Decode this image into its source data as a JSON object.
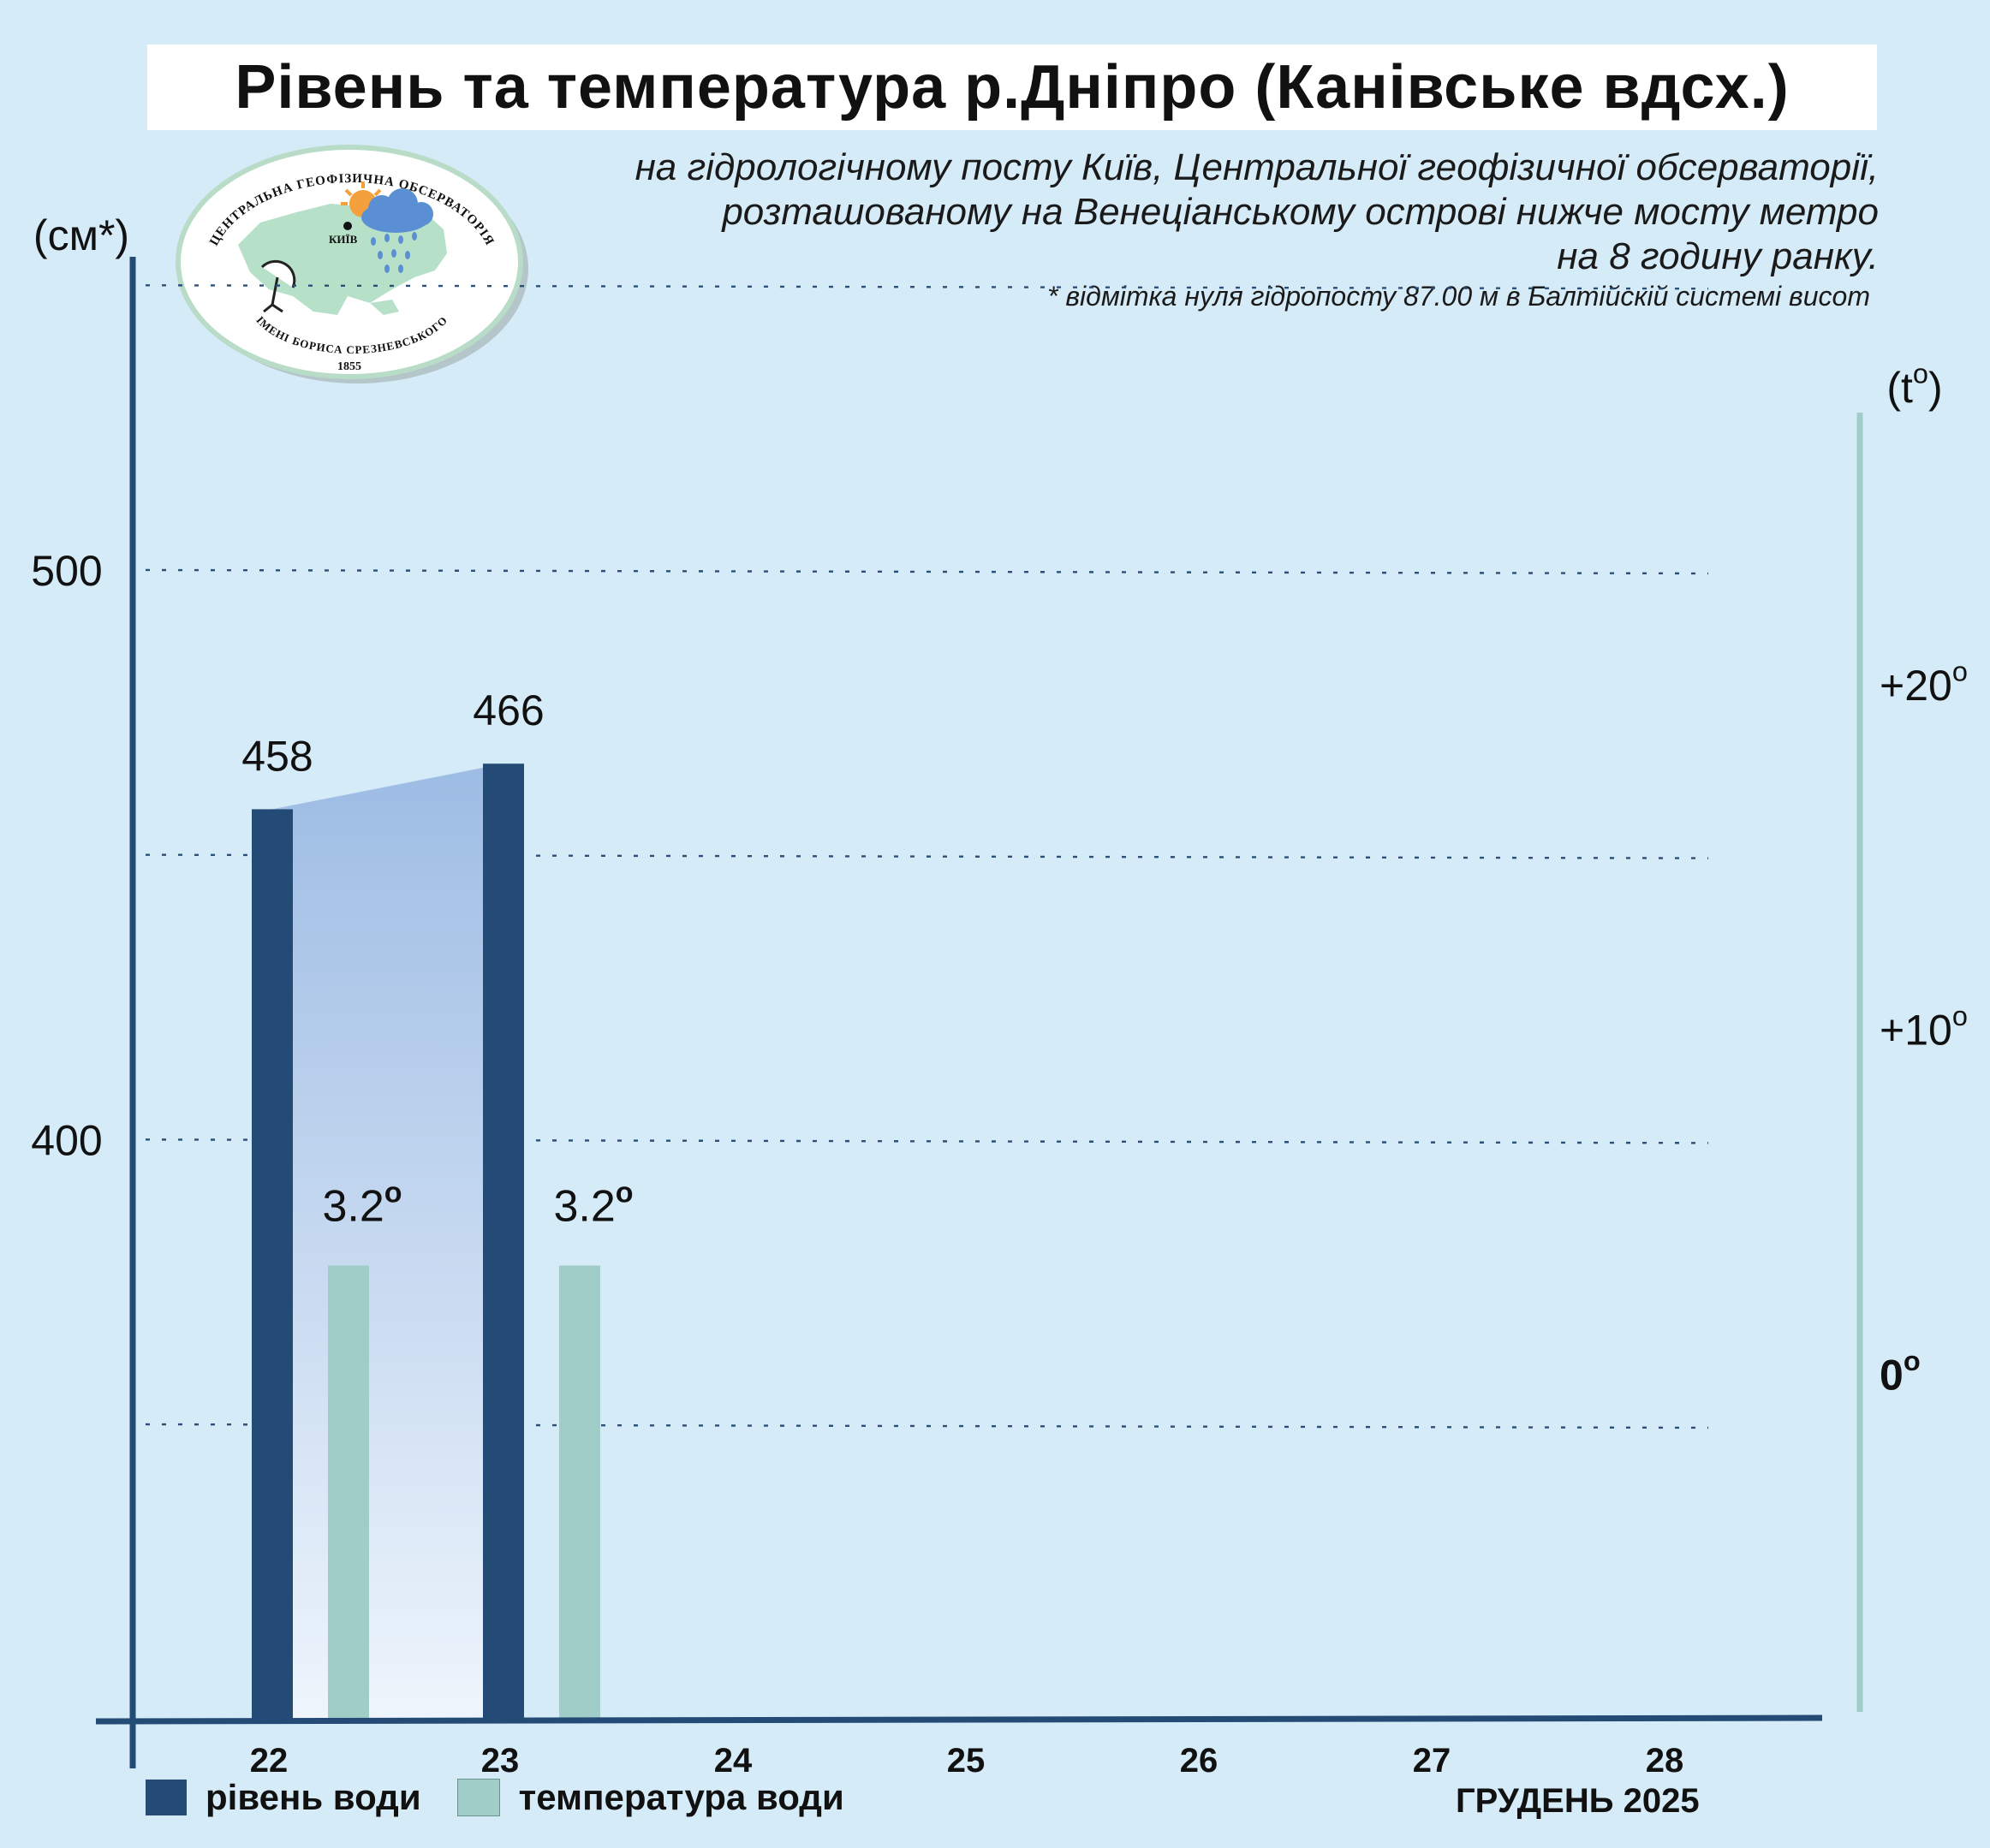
{
  "title": "Рівень та температура р.Дніпро (Канівське вдсх.)",
  "subtitle_lines": [
    "на гідрологічному посту Київ, Центральної геофізичної обсерваторії,",
    "розташованому на Венеціанському острові нижче мосту метро",
    "на 8 годину ранку."
  ],
  "footnote": "* відмітка нуля гідропосту 87.00 м в Балтійскій системі висот",
  "logo": {
    "top_text": "ЦЕНТРАЛЬНА ГЕОФІЗИЧНА ОБСЕРВАТОРІЯ",
    "bottom_text": "ІМЕНІ БОРИСА СРЕЗНЕВСЬКОГО",
    "year": "1855",
    "city": "КИЇВ"
  },
  "legend": {
    "level_label": "рівень води",
    "temp_label": "температура води"
  },
  "month_label": "ГРУДЕНЬ 2025",
  "colors": {
    "level": "#234b76",
    "temperature": "#a1cdc8",
    "band_top": "#9dbce4",
    "band_bottom": "#eef5fc",
    "axis_left": "#234b76",
    "axis_right": "#a1cdc8",
    "grid": "#2b4f78",
    "background": "#d6ebf8"
  },
  "chart_data": {
    "type": "bar",
    "categories": [
      "22",
      "23",
      "24",
      "25",
      "26",
      "27",
      "28"
    ],
    "series": [
      {
        "name": "рівень води",
        "axis": "left",
        "values": [
          458,
          466,
          null,
          null,
          null,
          null,
          null
        ],
        "labels": [
          "458",
          "466",
          "",
          "",
          "",
          "",
          ""
        ]
      },
      {
        "name": "температура води",
        "axis": "right",
        "values": [
          3.2,
          3.2,
          null,
          null,
          null,
          null,
          null
        ],
        "labels": [
          "3.2",
          "3.2",
          "",
          "",
          "",
          "",
          ""
        ]
      }
    ],
    "left_axis": {
      "label": "(см*)",
      "ticks": [
        {
          "value": 400,
          "label": "400"
        },
        {
          "value": 500,
          "label": "500"
        }
      ],
      "gridlines": [
        350,
        400,
        450,
        500,
        550
      ],
      "range": [
        298,
        555
      ]
    },
    "right_axis": {
      "label": "(t",
      "label_sup": "o",
      "label_close": ")",
      "ticks": [
        {
          "value": 0,
          "label": "0",
          "bold": true
        },
        {
          "value": 10,
          "label": "+10",
          "bold": false
        },
        {
          "value": 20,
          "label": "+20",
          "bold": false
        }
      ],
      "range": [
        -10,
        28
      ]
    },
    "degree_mark": "o",
    "grid": true,
    "legend_position": "bottom-left"
  }
}
